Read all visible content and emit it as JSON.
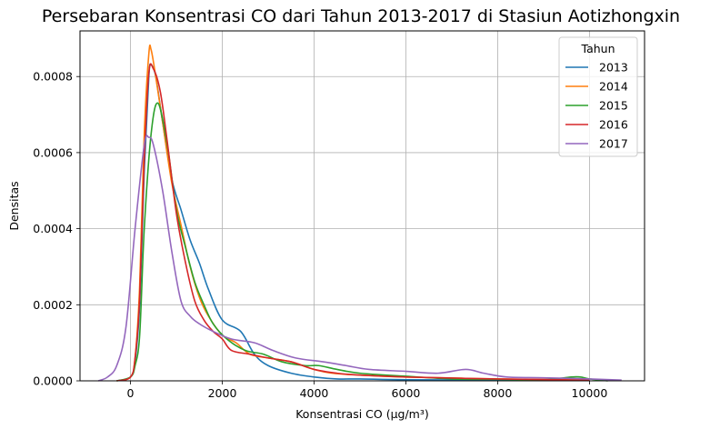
{
  "chart_data": {
    "type": "line",
    "title": "Persebaran Konsentrasi CO dari Tahun 2013-2017 di Stasiun Aotizhongxin",
    "xlabel": "Konsentrasi CO (µg/m³)",
    "ylabel": "Densitas",
    "xlim": [
      -1100,
      11200
    ],
    "ylim": [
      0,
      0.00092
    ],
    "xticks": [
      0,
      2000,
      4000,
      6000,
      8000,
      10000
    ],
    "xtick_labels": [
      "0",
      "2000",
      "4000",
      "6000",
      "8000",
      "10000"
    ],
    "yticks": [
      0,
      0.0002,
      0.0004,
      0.0006,
      0.0008
    ],
    "ytick_labels": [
      "0.0000",
      "0.0002",
      "0.0004",
      "0.0006",
      "0.0008"
    ],
    "grid": true,
    "legend": {
      "title": "Tahun",
      "placement": "top-right"
    },
    "series": [
      {
        "name": "2013",
        "color": "#1f77b4",
        "points": [
          [
            -300,
            0
          ],
          [
            0,
            1e-05
          ],
          [
            100,
            5e-05
          ],
          [
            200,
            0.0002
          ],
          [
            300,
            0.00055
          ],
          [
            400,
            0.0008
          ],
          [
            450,
            0.00083
          ],
          [
            550,
            0.0008
          ],
          [
            700,
            0.00068
          ],
          [
            900,
            0.00053
          ],
          [
            1100,
            0.00045
          ],
          [
            1300,
            0.00037
          ],
          [
            1500,
            0.00031
          ],
          [
            1700,
            0.00024
          ],
          [
            2000,
            0.00016
          ],
          [
            2400,
            0.00013
          ],
          [
            2700,
            7e-05
          ],
          [
            3000,
            4e-05
          ],
          [
            3500,
            2e-05
          ],
          [
            4000,
            1e-05
          ],
          [
            4500,
            5e-06
          ],
          [
            5000,
            5e-06
          ],
          [
            6000,
            3e-06
          ],
          [
            8000,
            2e-06
          ],
          [
            10000,
            1e-06
          ]
        ]
      },
      {
        "name": "2014",
        "color": "#ff7f0e",
        "points": [
          [
            -300,
            0
          ],
          [
            0,
            1e-05
          ],
          [
            100,
            6e-05
          ],
          [
            200,
            0.00025
          ],
          [
            300,
            0.00065
          ],
          [
            400,
            0.00086
          ],
          [
            450,
            0.00087
          ],
          [
            550,
            0.0008
          ],
          [
            700,
            0.00068
          ],
          [
            900,
            0.00052
          ],
          [
            1100,
            0.00041
          ],
          [
            1300,
            0.0003
          ],
          [
            1500,
            0.00022
          ],
          [
            1700,
            0.00017
          ],
          [
            2000,
            0.00012
          ],
          [
            2300,
            0.0001
          ],
          [
            2600,
            7e-05
          ],
          [
            3000,
            6e-05
          ],
          [
            3500,
            5e-05
          ],
          [
            4000,
            3e-05
          ],
          [
            4400,
            2e-05
          ],
          [
            5000,
            1.5e-05
          ],
          [
            6000,
            1e-05
          ],
          [
            8000,
            5e-06
          ],
          [
            10000,
            2e-06
          ]
        ]
      },
      {
        "name": "2015",
        "color": "#2ca02c",
        "points": [
          [
            -300,
            0
          ],
          [
            0,
            1e-05
          ],
          [
            100,
            4e-05
          ],
          [
            200,
            0.00012
          ],
          [
            300,
            0.0004
          ],
          [
            450,
            0.00065
          ],
          [
            600,
            0.00073
          ],
          [
            800,
            0.00062
          ],
          [
            1000,
            0.00045
          ],
          [
            1200,
            0.00035
          ],
          [
            1400,
            0.00026
          ],
          [
            1600,
            0.0002
          ],
          [
            1800,
            0.00015
          ],
          [
            2100,
            0.00011
          ],
          [
            2500,
            8e-05
          ],
          [
            2900,
            7e-05
          ],
          [
            3300,
            5e-05
          ],
          [
            3800,
            4e-05
          ],
          [
            4100,
            4e-05
          ],
          [
            4500,
            3e-05
          ],
          [
            5000,
            2e-05
          ],
          [
            6000,
            1.2e-05
          ],
          [
            7000,
            5e-06
          ],
          [
            8000,
            4e-06
          ],
          [
            9000,
            3e-06
          ],
          [
            9600,
            1e-05
          ],
          [
            9800,
            1e-05
          ],
          [
            10000,
            5e-06
          ],
          [
            10400,
            0
          ]
        ]
      },
      {
        "name": "2016",
        "color": "#d62728",
        "points": [
          [
            -300,
            0
          ],
          [
            0,
            1e-05
          ],
          [
            100,
            6e-05
          ],
          [
            200,
            0.00022
          ],
          [
            300,
            0.00058
          ],
          [
            400,
            0.00081
          ],
          [
            500,
            0.00082
          ],
          [
            650,
            0.00076
          ],
          [
            800,
            0.00063
          ],
          [
            1000,
            0.00044
          ],
          [
            1200,
            0.00031
          ],
          [
            1400,
            0.00021
          ],
          [
            1600,
            0.00016
          ],
          [
            1800,
            0.00013
          ],
          [
            2000,
            0.00011
          ],
          [
            2200,
            8e-05
          ],
          [
            2600,
            7e-05
          ],
          [
            3000,
            6e-05
          ],
          [
            3500,
            5e-05
          ],
          [
            4000,
            3e-05
          ],
          [
            4500,
            2e-05
          ],
          [
            5000,
            1.5e-05
          ],
          [
            6000,
            1e-05
          ],
          [
            8000,
            5e-06
          ],
          [
            10000,
            2e-06
          ]
        ]
      },
      {
        "name": "2017",
        "color": "#9467bd",
        "points": [
          [
            -700,
            0
          ],
          [
            -500,
            1e-05
          ],
          [
            -300,
            4e-05
          ],
          [
            -100,
            0.00014
          ],
          [
            100,
            0.0004
          ],
          [
            300,
            0.00062
          ],
          [
            400,
            0.00064
          ],
          [
            500,
            0.00062
          ],
          [
            700,
            0.0005
          ],
          [
            900,
            0.00034
          ],
          [
            1100,
            0.00021
          ],
          [
            1300,
            0.00017
          ],
          [
            1500,
            0.00015
          ],
          [
            1800,
            0.00013
          ],
          [
            2200,
            0.00011
          ],
          [
            2700,
            0.0001
          ],
          [
            3100,
            8e-05
          ],
          [
            3600,
            6e-05
          ],
          [
            4200,
            5e-05
          ],
          [
            4700,
            4e-05
          ],
          [
            5200,
            3e-05
          ],
          [
            6000,
            2.5e-05
          ],
          [
            6700,
            2e-05
          ],
          [
            7300,
            3e-05
          ],
          [
            7700,
            2e-05
          ],
          [
            8200,
            1e-05
          ],
          [
            9000,
            8e-06
          ],
          [
            10000,
            5e-06
          ],
          [
            10700,
            2e-06
          ]
        ]
      }
    ]
  }
}
